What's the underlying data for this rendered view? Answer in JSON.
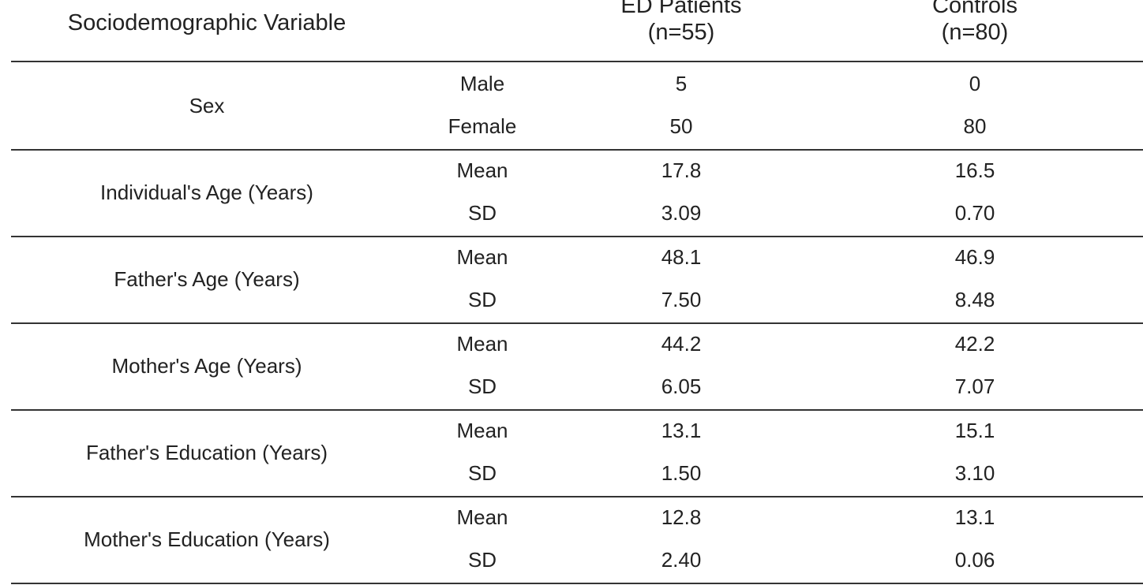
{
  "header": {
    "variable": "Sociodemographic Variable",
    "ed_title": "ED Patients",
    "ed_n": "(n=55)",
    "ctrl_title": "Controls",
    "ctrl_n": "(n=80)"
  },
  "rows": [
    {
      "variable": "Sex",
      "sub": [
        {
          "label": "Male",
          "ed": "5",
          "ctrl": "0"
        },
        {
          "label": "Female",
          "ed": "50",
          "ctrl": "80"
        }
      ]
    },
    {
      "variable": "Individual's Age (Years)",
      "sub": [
        {
          "label": "Mean",
          "ed": "17.8",
          "ctrl": "16.5"
        },
        {
          "label": "SD",
          "ed": "3.09",
          "ctrl": "0.70"
        }
      ]
    },
    {
      "variable": "Father's Age (Years)",
      "sub": [
        {
          "label": "Mean",
          "ed": "48.1",
          "ctrl": "46.9"
        },
        {
          "label": "SD",
          "ed": "7.50",
          "ctrl": "8.48"
        }
      ]
    },
    {
      "variable": "Mother's Age (Years)",
      "sub": [
        {
          "label": "Mean",
          "ed": "44.2",
          "ctrl": "42.2"
        },
        {
          "label": "SD",
          "ed": "6.05",
          "ctrl": "7.07"
        }
      ]
    },
    {
      "variable": "Father's Education (Years)",
      "sub": [
        {
          "label": "Mean",
          "ed": "13.1",
          "ctrl": "15.1"
        },
        {
          "label": "SD",
          "ed": "1.50",
          "ctrl": "3.10"
        }
      ]
    },
    {
      "variable": "Mother's Education (Years)",
      "sub": [
        {
          "label": "Mean",
          "ed": "12.8",
          "ctrl": "13.1"
        },
        {
          "label": "SD",
          "ed": "2.40",
          "ctrl": "0.06"
        }
      ]
    }
  ]
}
